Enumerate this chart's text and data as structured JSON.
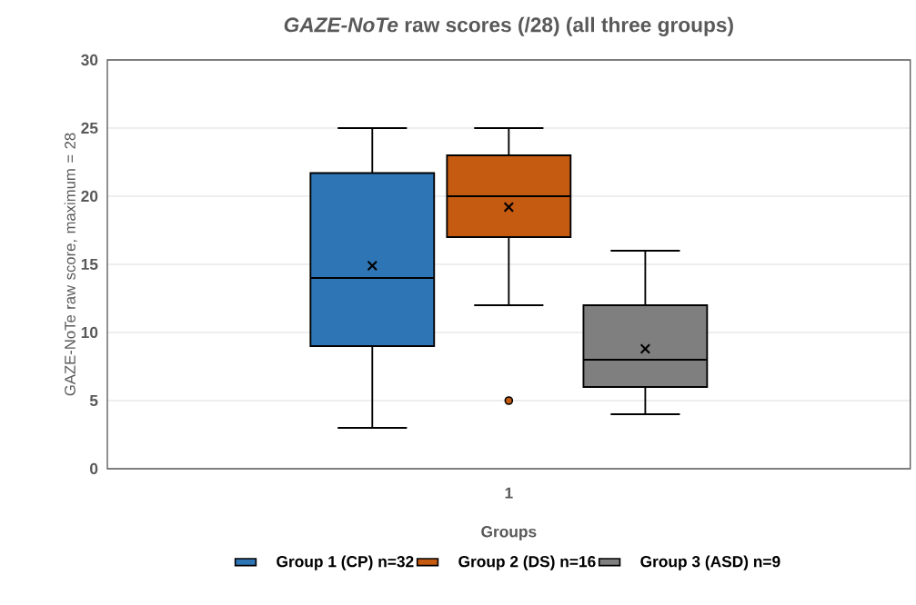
{
  "chart_data": {
    "type": "box",
    "title": "*GAZE-NoTe* raw scores (/28) (all three groups)",
    "xlabel": "Groups",
    "ylabel": "GAZE-NoTe raw score, maximum = 28",
    "categories": [
      "1"
    ],
    "series": [
      {
        "name": "Group 1 (CP) n=32",
        "color": "#2e75b6",
        "boxes": [
          {
            "low": 3,
            "q1": 9,
            "median": 14,
            "q3": 21.7,
            "high": 25,
            "mean": 14.9
          }
        ]
      },
      {
        "name": "Group 2 (DS) n=16",
        "color": "#c55a11",
        "boxes": [
          {
            "low": 12,
            "q1": 17,
            "median": 20,
            "q3": 23,
            "high": 25,
            "mean": 19.2,
            "outliers": [
              5
            ]
          }
        ]
      },
      {
        "name": "Group 3 (ASD) n=9",
        "color": "#7f7f7f",
        "boxes": [
          {
            "low": 4,
            "q1": 6,
            "median": 8,
            "q3": 12,
            "high": 16,
            "mean": 8.8
          }
        ]
      }
    ],
    "ylim": [
      0,
      30
    ],
    "yticks": [
      0,
      5,
      10,
      15,
      20,
      25,
      30
    ],
    "grid": "y",
    "legend": "bottom"
  }
}
